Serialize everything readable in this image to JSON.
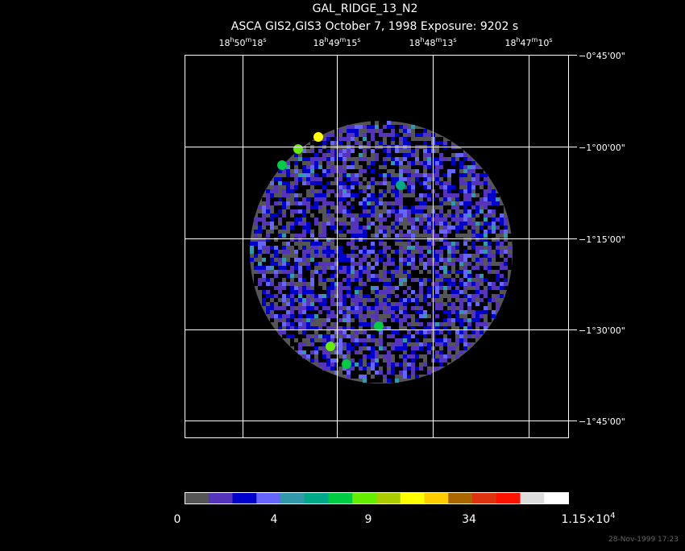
{
  "header": {
    "title": "GAL_RIDGE_13_N2",
    "subtitle": "ASCA GIS2,GIS3 October 7, 1998 Exposure: 9202 s"
  },
  "ra_labels": [
    [
      "18",
      "h",
      "50",
      "m",
      "18",
      "s"
    ],
    [
      "18",
      "h",
      "49",
      "m",
      "15",
      "s"
    ],
    [
      "18",
      "h",
      "48",
      "m",
      "13",
      "s"
    ],
    [
      "18",
      "h",
      "47",
      "m",
      "10",
      "s"
    ]
  ],
  "dec_labels": [
    "−0°45'00\"",
    "−1°00'00\"",
    "−1°15'00\"",
    "−1°30'00\"",
    "−1°45'00\""
  ],
  "colorbar": {
    "colors": [
      "#555555",
      "#5533bb",
      "#0000cc",
      "#6666ff",
      "#3399aa",
      "#00aa88",
      "#00cc44",
      "#66ee00",
      "#aacc00",
      "#ffff00",
      "#ffcc00",
      "#aa6600",
      "#dd3311",
      "#ff1100",
      "#dddddd",
      "#ffffff"
    ],
    "labels": [
      [
        "0"
      ],
      [
        "4"
      ],
      [
        "9"
      ],
      [
        "34"
      ],
      [
        "1.15×10",
        "4"
      ]
    ]
  },
  "footer": {
    "timestamp": "28-Nov-1999 17:23"
  }
}
